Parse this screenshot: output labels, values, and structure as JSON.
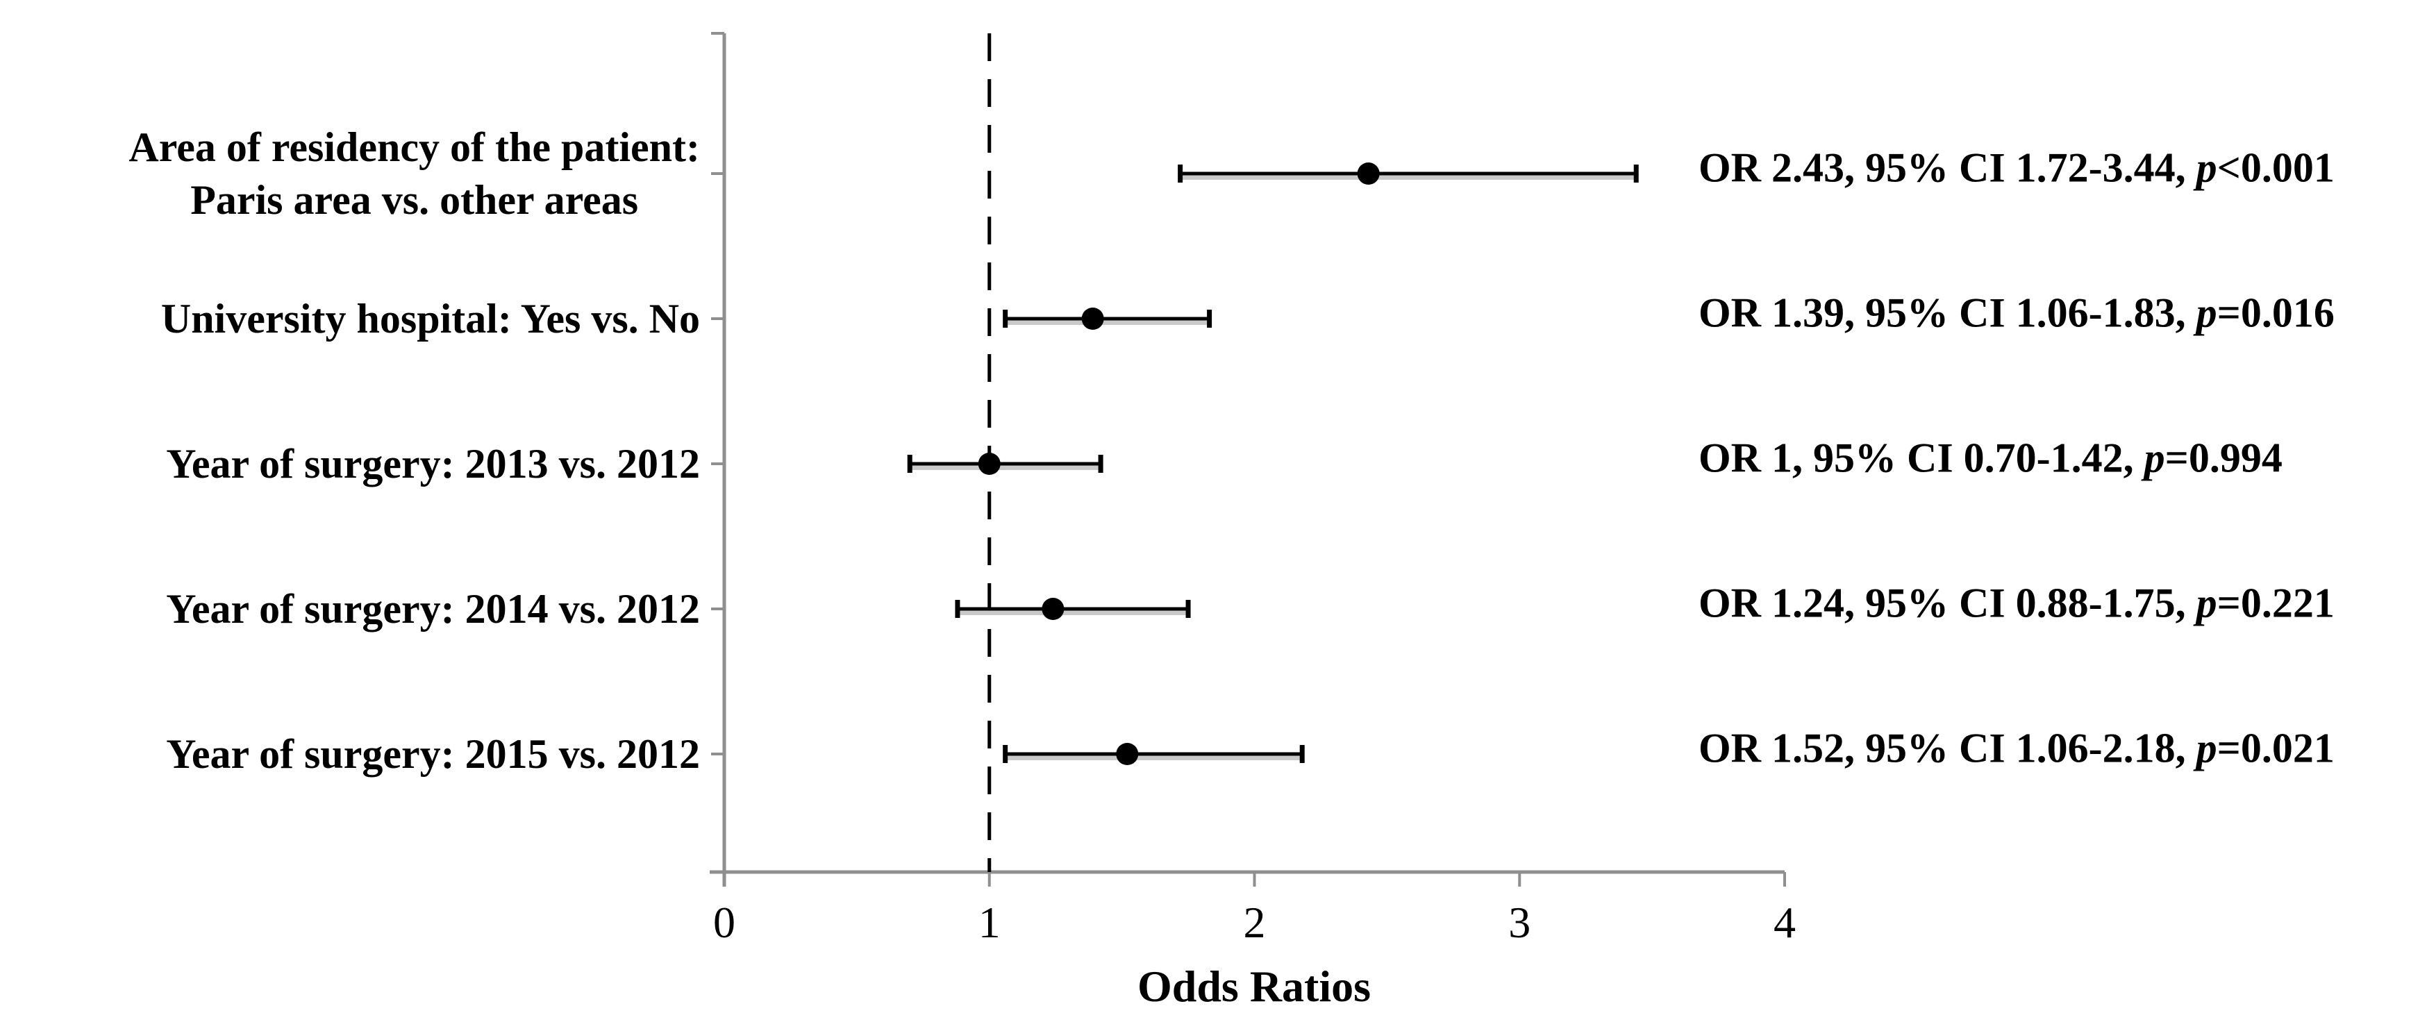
{
  "colors": {
    "axis": "#8f8f8f",
    "data": "#000000",
    "error_bar_shadow": "#c9c9c9",
    "background": "#ffffff"
  },
  "chart_data": {
    "type": "scatter",
    "subtype": "forest-plot",
    "title": "",
    "xlabel": "Odds Ratios",
    "ylabel": "",
    "xlim": [
      0,
      4
    ],
    "xticks": [
      "0",
      "1",
      "2",
      "3",
      "4"
    ],
    "xtick_values": [
      0,
      1,
      2,
      3,
      4
    ],
    "grid": "off",
    "legend": "none",
    "reference_line_x": 1,
    "reference_line_style": "dashed",
    "rows": [
      {
        "label_lines": [
          "Area of residency of the patient:",
          "Paris area vs. other areas"
        ],
        "or": 2.43,
        "ci_low": 1.72,
        "ci_high": 3.44,
        "annotation_prefix": "OR 2.43, 95% CI 1.72-3.44, ",
        "p_symbol": "p",
        "p_rest": "<0.001"
      },
      {
        "label_lines": [
          "University hospital: Yes vs. No"
        ],
        "or": 1.39,
        "ci_low": 1.06,
        "ci_high": 1.83,
        "annotation_prefix": "OR 1.39, 95% CI 1.06-1.83, ",
        "p_symbol": "p",
        "p_rest": "=0.016"
      },
      {
        "label_lines": [
          "Year of surgery: 2013 vs. 2012"
        ],
        "or": 1.0,
        "ci_low": 0.7,
        "ci_high": 1.42,
        "annotation_prefix": "OR 1, 95% CI 0.70-1.42, ",
        "p_symbol": "p",
        "p_rest": "=0.994"
      },
      {
        "label_lines": [
          "Year of surgery: 2014 vs. 2012"
        ],
        "or": 1.24,
        "ci_low": 0.88,
        "ci_high": 1.75,
        "annotation_prefix": "OR 1.24, 95% CI 0.88-1.75, ",
        "p_symbol": "p",
        "p_rest": "=0.221"
      },
      {
        "label_lines": [
          "Year of surgery: 2015 vs. 2012"
        ],
        "or": 1.52,
        "ci_low": 1.06,
        "ci_high": 2.18,
        "annotation_prefix": "OR 1.52, 95% CI 1.06-2.18, ",
        "p_symbol": "p",
        "p_rest": "=0.021"
      }
    ]
  }
}
